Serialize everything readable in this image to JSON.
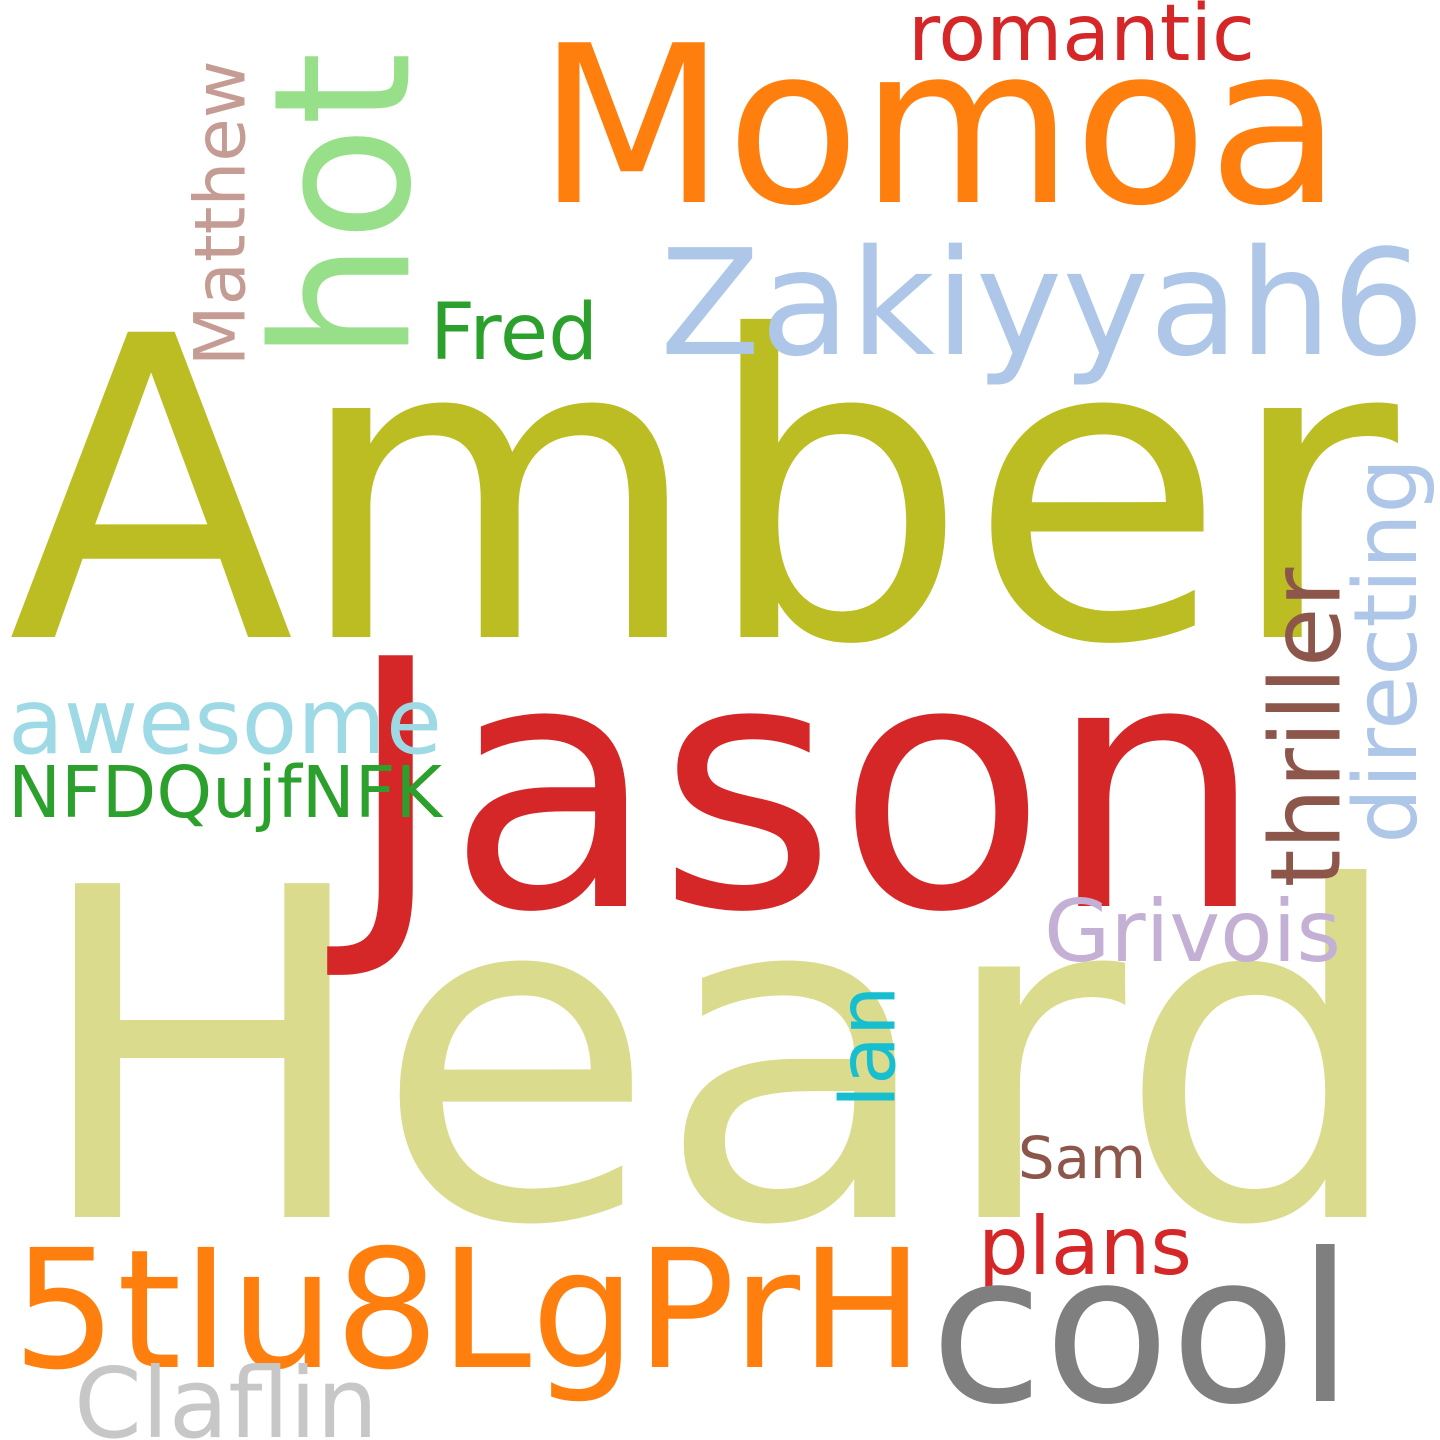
{
  "words": [
    {
      "text": "Heard",
      "color": "#dbdb8d"
    },
    {
      "text": "Amber",
      "color": "#bcbd22"
    },
    {
      "text": "Jason",
      "color": "#d62728"
    },
    {
      "text": "Momoa",
      "color": "#ff7f0e"
    },
    {
      "text": "Zakiyyah6",
      "color": "#aec7e8"
    },
    {
      "text": "hot",
      "color": "#98df8a"
    },
    {
      "text": "Matthew",
      "color": "#c49c94"
    },
    {
      "text": "romantic",
      "color": "#d62728"
    },
    {
      "text": "Fred",
      "color": "#2ca02c"
    },
    {
      "text": "awesome",
      "color": "#9edae5"
    },
    {
      "text": "NFDQujfNFK",
      "color": "#2ca02c"
    },
    {
      "text": "directing",
      "color": "#aec7e8"
    },
    {
      "text": "thriller",
      "color": "#8c564b"
    },
    {
      "text": "Grivois",
      "color": "#c5b0d5"
    },
    {
      "text": "Ian",
      "color": "#17becf"
    },
    {
      "text": "Sam",
      "color": "#8c564b"
    },
    {
      "text": "plans",
      "color": "#d62728"
    },
    {
      "text": "5tIu8LgPrH",
      "color": "#ff7f0e"
    },
    {
      "text": "cool",
      "color": "#7f7f7f"
    },
    {
      "text": "Claflin",
      "color": "#c7c7c7"
    }
  ]
}
